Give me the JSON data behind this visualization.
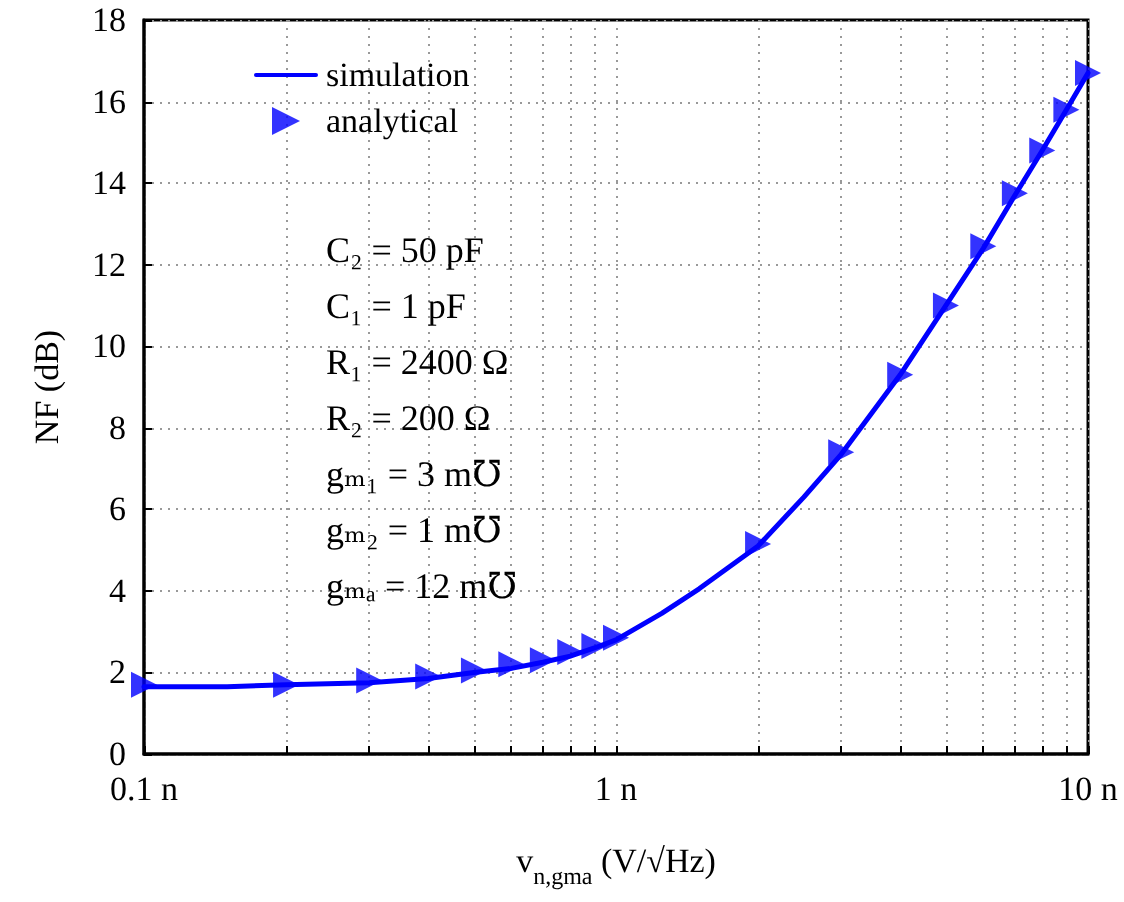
{
  "chart_data": {
    "type": "line",
    "xlabel": "v$_{n,gma}$ (V/√Hz)",
    "ylabel": "NF (dB)",
    "annotations": [
      "C₂ = 50 pF",
      "C₁ = 1 pF",
      "R₁ = 2400 Ω",
      "R₂ = 200 Ω",
      "gₘ₁ = 3 m℧",
      "gₘ₂ = 1 m℧",
      "gₘₐ = 12 m℧"
    ],
    "series": [
      {
        "name": "simulation",
        "color": "#0000ff",
        "marker": "none",
        "line_style": "solid",
        "x": [
          0.1,
          0.15,
          0.2,
          0.3,
          0.4,
          0.5,
          0.6,
          0.7,
          0.8,
          0.9,
          1,
          1.25,
          1.5,
          2,
          2.5,
          3,
          4,
          5,
          6,
          7,
          8,
          9,
          10
        ],
        "values": [
          1.65,
          1.65,
          1.7,
          1.75,
          1.85,
          2.0,
          2.1,
          2.25,
          2.4,
          2.6,
          2.8,
          3.45,
          4.05,
          5.1,
          6.3,
          7.35,
          9.3,
          11.0,
          12.4,
          13.7,
          14.8,
          15.8,
          16.7
        ]
      },
      {
        "name": "analytical",
        "type": "scatter",
        "color": "#0000ff",
        "marker": "triangle",
        "x": [
          0.1,
          0.2,
          0.3,
          0.4,
          0.5,
          0.6,
          0.7,
          0.8,
          0.9,
          1,
          2,
          3,
          4,
          5,
          6,
          7,
          8,
          9,
          10
        ],
        "values": [
          1.7,
          1.7,
          1.8,
          1.9,
          2.05,
          2.2,
          2.3,
          2.5,
          2.65,
          2.85,
          5.15,
          7.4,
          9.3,
          11.0,
          12.45,
          13.75,
          14.8,
          15.8,
          16.7
        ]
      }
    ],
    "log": "x",
    "xlim": [
      0.1,
      10
    ],
    "xticks": [
      {
        "value": 0.1,
        "label": "0.1 n"
      },
      {
        "value": 0.2,
        "label": null
      },
      {
        "value": 0.3,
        "label": null
      },
      {
        "value": 0.4,
        "label": null
      },
      {
        "value": 0.5,
        "label": null
      },
      {
        "value": 0.6,
        "label": null
      },
      {
        "value": 0.7,
        "label": null
      },
      {
        "value": 0.8,
        "label": null
      },
      {
        "value": 0.9,
        "label": null
      },
      {
        "value": 1,
        "label": "1 n"
      },
      {
        "value": 2,
        "label": null
      },
      {
        "value": 3,
        "label": null
      },
      {
        "value": 4,
        "label": null
      },
      {
        "value": 5,
        "label": null
      },
      {
        "value": 6,
        "label": null
      },
      {
        "value": 7,
        "label": null
      },
      {
        "value": 8,
        "label": null
      },
      {
        "value": 9,
        "label": null
      },
      {
        "value": 10,
        "label": "10 n"
      }
    ],
    "ylim": [
      0,
      18
    ],
    "yticks": [
      0,
      2,
      4,
      6,
      8,
      10,
      12,
      14,
      16,
      18
    ],
    "grid": true,
    "legend": "top left"
  }
}
